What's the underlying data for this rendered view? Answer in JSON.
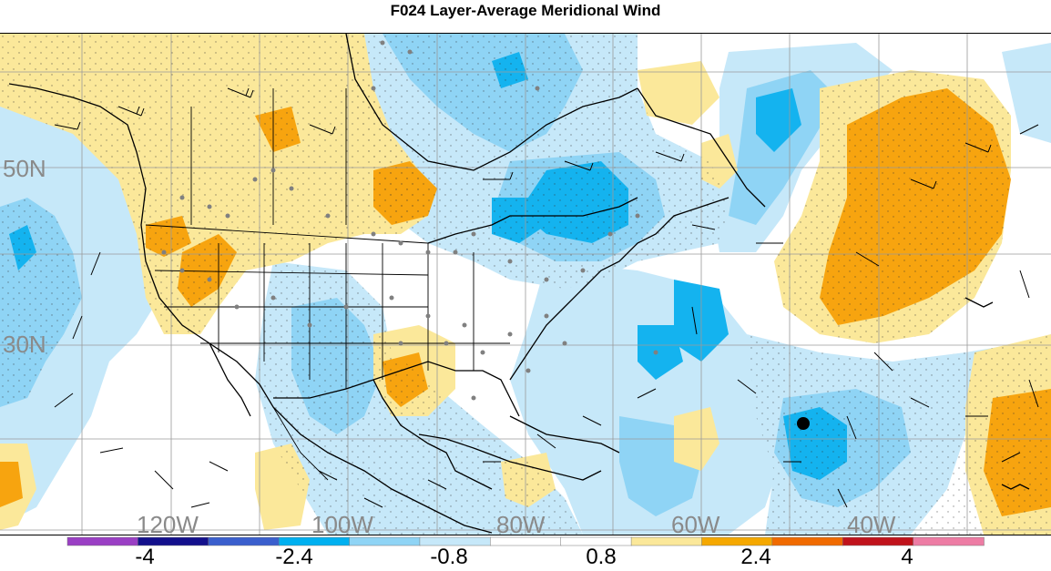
{
  "title": "F024 Layer-Average Meridional Wind",
  "map": {
    "lat_labels": [
      "50N",
      "30N"
    ],
    "lon_labels": [
      "120W",
      "100W",
      "80W",
      "60W",
      "40W"
    ]
  },
  "colorbar": {
    "colors": [
      "#9a3fc4",
      "#13108c",
      "#3a5fcd",
      "#00b0f0",
      "#8fd4f5",
      "#c6e8f9",
      "#ffffff",
      "#ffffff",
      "#fbe89a",
      "#f5a800",
      "#f06a00",
      "#c0131c",
      "#ed7ca4"
    ],
    "tick_labels": [
      "-4",
      "-2.4",
      "-0.8",
      "0.8",
      "2.4",
      "4"
    ]
  },
  "field_colors": {
    "strong_pos": "#f7a40f",
    "weak_pos": "#fbe89a",
    "weak_neg": "#c6e8f9",
    "mod_neg": "#8fd4f5",
    "strong_neg": "#14b3ef"
  }
}
